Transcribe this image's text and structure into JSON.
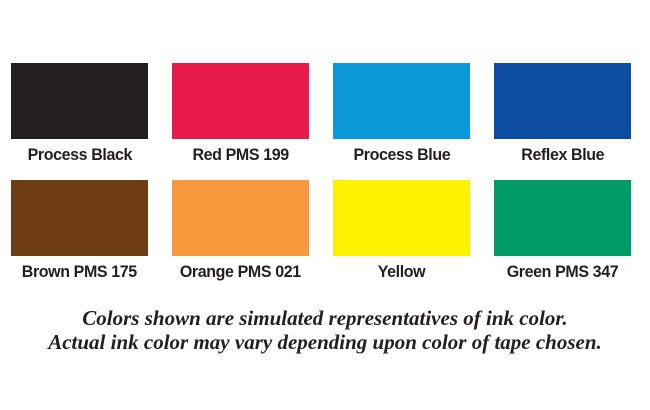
{
  "swatches": [
    {
      "label": "Process Black",
      "color": "#231F20"
    },
    {
      "label": "Red PMS 199",
      "color": "#E81A4B"
    },
    {
      "label": "Process Blue",
      "color": "#0A99D6"
    },
    {
      "label": "Reflex Blue",
      "color": "#0D4DA1"
    },
    {
      "label": "Brown PMS 175",
      "color": "#6F3D14"
    },
    {
      "label": "Orange PMS 021",
      "color": "#F7993D"
    },
    {
      "label": "Yellow",
      "color": "#FFF200"
    },
    {
      "label": "Green PMS 347",
      "color": "#009B67"
    }
  ],
  "disclaimer": {
    "line1": "Colors shown are simulated representatives of ink color.",
    "line2": "Actual ink color may vary depending upon color of tape chosen."
  },
  "text_color": "#231F20"
}
